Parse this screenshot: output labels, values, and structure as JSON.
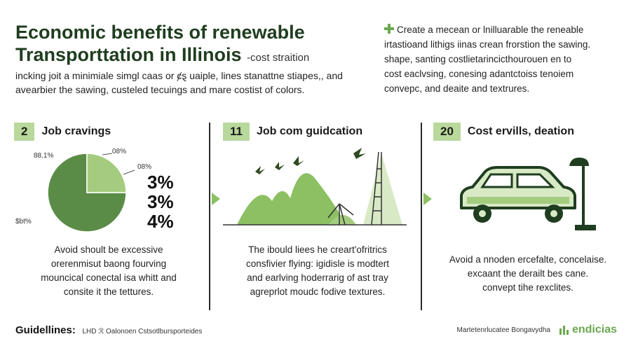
{
  "title": {
    "line1": "Economic benefits of renewable",
    "line2": "Transporttation in Illinois",
    "suffix": "-cost straition"
  },
  "intro": {
    "line1": "incking joit a minimiale simgl caas or ȼȿ uaiple, lines stanattne stiapes,, and",
    "line2": "avearbier the sawing, custeled tecuings and mare costist of colors."
  },
  "note": {
    "icon": "plus-icon",
    "line1": "Create a mecean or lnilluarable the reneable",
    "line2": "irtastioand lithigs iinas crean frorstion the sawing.",
    "line3": "shape, santing costlietarincicthourouen en to",
    "line4": "cost eaclvsing, conesing adantctoiss tenoiem",
    "line5": "convepc, and deaite and textrures."
  },
  "panels": [
    {
      "badge": "2",
      "label": "Job cravings",
      "pie_labels": {
        "top_left": "88.1%",
        "top_right": "08%",
        "right": "08%",
        "bottom_left": "$bt%"
      },
      "percents": [
        "3%",
        "3%",
        "4%"
      ],
      "text": [
        "Avoid shoult be excessive",
        "orerenmisut baong fourving",
        "mouncical conectal isa whitt and",
        "consite it the tettures."
      ]
    },
    {
      "badge": "11",
      "label": "Job com guidcation",
      "text": [
        "The ibould liees he creart'ofritrics",
        "consfivier flying: igidisle is modtert",
        "and earlving hoderrarig of ast tray",
        "agreprlot moudc fodive textures."
      ]
    },
    {
      "badge": "20",
      "label": "Cost ervills, deation",
      "text": [
        "Avoid a nnoden ercefalte, concelaise.",
        "excaant the derailt bes cane.",
        "convept tihe rexclites."
      ]
    }
  ],
  "chart_data": {
    "type": "pie",
    "values": [
      75,
      25
    ],
    "colors": [
      "#5b8c47",
      "#a4cc7f"
    ]
  },
  "footer": {
    "label": "Guidellines:",
    "note": "LHD ℛ Oalonoen Cstsotlbursporteides",
    "credit": "Martetenrlucatee Bongavydha",
    "brand": "endicias"
  },
  "colors": {
    "accent": "#6aa84f",
    "accent_light": "#b9d89c",
    "dark_green": "#5b8c47",
    "divider": "#2b2b2b"
  }
}
